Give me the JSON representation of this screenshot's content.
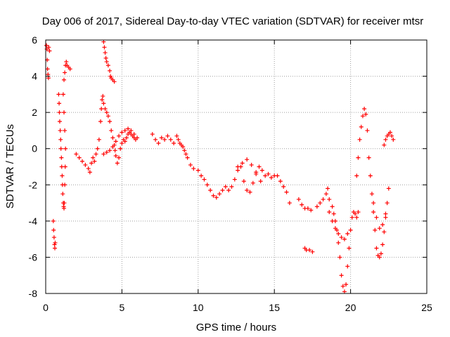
{
  "chart_data": {
    "type": "scatter",
    "title": "Day 006 of 2017, Sidereal Day-to-day VTEC variation (SDTVAR) for receiver mtsr",
    "xlabel": "GPS time / hours",
    "ylabel": "SDTVAR / TECUs",
    "xlim": [
      0,
      25
    ],
    "ylim": [
      -8,
      6
    ],
    "xticks": [
      0,
      5,
      10,
      15,
      20,
      25
    ],
    "yticks": [
      -8,
      -6,
      -4,
      -2,
      0,
      2,
      4,
      6
    ],
    "grid": true,
    "marker": "+",
    "series": [
      {
        "name": "SDTVAR",
        "color": "#ff0000",
        "points": [
          [
            0.05,
            5.7
          ],
          [
            0.08,
            5.5
          ],
          [
            0.1,
            4.9
          ],
          [
            0.12,
            4.4
          ],
          [
            0.15,
            4.1
          ],
          [
            0.18,
            3.9
          ],
          [
            0.2,
            5.6
          ],
          [
            0.25,
            5.4
          ],
          [
            0.5,
            -4.0
          ],
          [
            0.52,
            -4.5
          ],
          [
            0.55,
            -4.9
          ],
          [
            0.58,
            -5.3
          ],
          [
            0.6,
            -5.5
          ],
          [
            0.62,
            -5.2
          ],
          [
            0.85,
            3.0
          ],
          [
            0.88,
            2.5
          ],
          [
            0.9,
            2.0
          ],
          [
            0.92,
            1.5
          ],
          [
            0.95,
            1.0
          ],
          [
            0.98,
            0.5
          ],
          [
            1.0,
            0.0
          ],
          [
            1.03,
            -0.5
          ],
          [
            1.05,
            -1.0
          ],
          [
            1.08,
            -1.5
          ],
          [
            1.1,
            -2.0
          ],
          [
            1.12,
            -2.5
          ],
          [
            1.15,
            -3.0
          ],
          [
            1.18,
            -3.2
          ],
          [
            1.2,
            -3.3
          ],
          [
            1.22,
            -3.0
          ],
          [
            1.25,
            -2.0
          ],
          [
            1.28,
            -1.0
          ],
          [
            1.3,
            0.0
          ],
          [
            1.25,
            1.0
          ],
          [
            1.2,
            2.0
          ],
          [
            1.15,
            3.0
          ],
          [
            1.2,
            3.8
          ],
          [
            1.25,
            4.2
          ],
          [
            1.3,
            4.6
          ],
          [
            1.35,
            4.8
          ],
          [
            1.4,
            4.6
          ],
          [
            1.5,
            4.5
          ],
          [
            1.6,
            4.4
          ],
          [
            2.0,
            -0.3
          ],
          [
            2.2,
            -0.5
          ],
          [
            2.4,
            -0.7
          ],
          [
            2.6,
            -0.9
          ],
          [
            2.8,
            -1.1
          ],
          [
            2.9,
            -1.3
          ],
          [
            3.0,
            -0.8
          ],
          [
            3.1,
            -0.5
          ],
          [
            3.2,
            -0.7
          ],
          [
            3.3,
            -0.3
          ],
          [
            3.4,
            0.0
          ],
          [
            3.5,
            0.5
          ],
          [
            3.6,
            1.5
          ],
          [
            3.65,
            2.2
          ],
          [
            3.7,
            2.7
          ],
          [
            3.75,
            2.9
          ],
          [
            3.8,
            2.5
          ],
          [
            3.9,
            2.2
          ],
          [
            4.0,
            2.0
          ],
          [
            4.1,
            1.8
          ],
          [
            4.2,
            1.5
          ],
          [
            4.3,
            1.0
          ],
          [
            4.4,
            0.6
          ],
          [
            4.5,
            0.2
          ],
          [
            4.55,
            -0.1
          ],
          [
            4.6,
            -0.4
          ],
          [
            4.7,
            -0.8
          ],
          [
            4.8,
            -0.5
          ],
          [
            4.9,
            0.0
          ],
          [
            5.0,
            0.3
          ],
          [
            5.1,
            0.5
          ],
          [
            5.2,
            0.4
          ],
          [
            5.3,
            0.6
          ],
          [
            5.4,
            0.8
          ],
          [
            5.5,
            0.9
          ],
          [
            5.6,
            0.8
          ],
          [
            5.7,
            0.7
          ],
          [
            5.8,
            0.6
          ],
          [
            5.9,
            0.5
          ],
          [
            3.8,
            -0.3
          ],
          [
            4.0,
            -0.2
          ],
          [
            4.2,
            -0.1
          ],
          [
            4.4,
            0.1
          ],
          [
            4.6,
            0.4
          ],
          [
            4.8,
            0.7
          ],
          [
            5.0,
            0.9
          ],
          [
            5.2,
            1.0
          ],
          [
            5.4,
            1.1
          ],
          [
            5.6,
            1.0
          ],
          [
            5.8,
            0.8
          ],
          [
            6.0,
            0.6
          ],
          [
            3.8,
            5.9
          ],
          [
            3.85,
            5.6
          ],
          [
            3.9,
            5.3
          ],
          [
            3.95,
            5.0
          ],
          [
            4.0,
            4.8
          ],
          [
            4.1,
            4.6
          ],
          [
            4.2,
            4.3
          ],
          [
            4.25,
            4.0
          ],
          [
            4.3,
            3.9
          ],
          [
            4.4,
            3.8
          ],
          [
            4.5,
            3.7
          ],
          [
            7.0,
            0.8
          ],
          [
            7.2,
            0.5
          ],
          [
            7.4,
            0.3
          ],
          [
            7.6,
            0.6
          ],
          [
            7.8,
            0.5
          ],
          [
            8.0,
            0.7
          ],
          [
            8.2,
            0.5
          ],
          [
            8.4,
            0.3
          ],
          [
            8.6,
            0.7
          ],
          [
            8.7,
            0.5
          ],
          [
            8.8,
            0.3
          ],
          [
            8.9,
            0.2
          ],
          [
            9.0,
            0.1
          ],
          [
            9.1,
            -0.1
          ],
          [
            9.2,
            -0.3
          ],
          [
            9.3,
            -0.5
          ],
          [
            9.5,
            -0.9
          ],
          [
            9.7,
            -1.1
          ],
          [
            10.0,
            -1.2
          ],
          [
            10.2,
            -1.5
          ],
          [
            10.4,
            -1.7
          ],
          [
            10.6,
            -2.0
          ],
          [
            10.8,
            -2.3
          ],
          [
            11.0,
            -2.6
          ],
          [
            11.2,
            -2.7
          ],
          [
            11.4,
            -2.5
          ],
          [
            11.6,
            -2.3
          ],
          [
            11.8,
            -2.1
          ],
          [
            12.0,
            -2.3
          ],
          [
            12.2,
            -2.1
          ],
          [
            12.4,
            -1.7
          ],
          [
            12.6,
            -1.2
          ],
          [
            12.8,
            -1.0
          ],
          [
            13.0,
            -1.8
          ],
          [
            13.2,
            -2.3
          ],
          [
            13.4,
            -2.4
          ],
          [
            13.6,
            -1.9
          ],
          [
            13.8,
            -1.3
          ],
          [
            14.0,
            -1.0
          ],
          [
            14.2,
            -1.2
          ],
          [
            14.4,
            -1.5
          ],
          [
            14.6,
            -1.4
          ],
          [
            14.8,
            -1.6
          ],
          [
            15.0,
            -1.5
          ],
          [
            15.2,
            -1.5
          ],
          [
            15.4,
            -1.8
          ],
          [
            15.6,
            -2.1
          ],
          [
            15.8,
            -2.4
          ],
          [
            16.0,
            -3.0
          ],
          [
            12.6,
            -1.0
          ],
          [
            12.9,
            -0.8
          ],
          [
            13.2,
            -0.6
          ],
          [
            13.5,
            -0.9
          ],
          [
            13.8,
            -1.4
          ],
          [
            14.1,
            -1.8
          ],
          [
            16.6,
            -2.8
          ],
          [
            16.8,
            -3.1
          ],
          [
            17.0,
            -3.3
          ],
          [
            17.2,
            -3.3
          ],
          [
            17.4,
            -3.4
          ],
          [
            17.0,
            -5.5
          ],
          [
            17.1,
            -5.6
          ],
          [
            17.3,
            -5.6
          ],
          [
            17.5,
            -5.7
          ],
          [
            17.8,
            -3.2
          ],
          [
            18.0,
            -3.0
          ],
          [
            18.2,
            -2.8
          ],
          [
            18.4,
            -2.5
          ],
          [
            18.5,
            -2.2
          ],
          [
            18.6,
            -2.8
          ],
          [
            18.8,
            -3.2
          ],
          [
            18.9,
            -3.6
          ],
          [
            19.0,
            -4.0
          ],
          [
            19.1,
            -4.5
          ],
          [
            19.2,
            -5.2
          ],
          [
            19.3,
            -6.0
          ],
          [
            19.4,
            -7.0
          ],
          [
            19.5,
            -7.6
          ],
          [
            19.6,
            -7.9
          ],
          [
            19.7,
            -7.5
          ],
          [
            19.8,
            -6.5
          ],
          [
            19.9,
            -5.5
          ],
          [
            20.0,
            -4.5
          ],
          [
            20.1,
            -3.8
          ],
          [
            20.2,
            -3.5
          ],
          [
            20.3,
            -3.6
          ],
          [
            20.4,
            -3.8
          ],
          [
            20.5,
            -3.5
          ],
          [
            18.6,
            -3.5
          ],
          [
            18.8,
            -4.0
          ],
          [
            19.0,
            -4.4
          ],
          [
            19.2,
            -4.7
          ],
          [
            19.4,
            -4.9
          ],
          [
            19.6,
            -5.0
          ],
          [
            19.8,
            -4.7
          ],
          [
            20.4,
            -1.5
          ],
          [
            20.5,
            -0.5
          ],
          [
            20.6,
            0.5
          ],
          [
            20.7,
            1.2
          ],
          [
            20.8,
            1.8
          ],
          [
            20.9,
            2.2
          ],
          [
            21.0,
            1.9
          ],
          [
            21.1,
            1.0
          ],
          [
            21.2,
            -0.5
          ],
          [
            21.3,
            -1.5
          ],
          [
            21.4,
            -2.5
          ],
          [
            21.5,
            -3.5
          ],
          [
            21.6,
            -4.5
          ],
          [
            21.7,
            -5.5
          ],
          [
            21.8,
            -5.9
          ],
          [
            21.9,
            -6.0
          ],
          [
            22.0,
            -5.8
          ],
          [
            22.1,
            -5.3
          ],
          [
            22.2,
            -4.6
          ],
          [
            22.3,
            -3.8
          ],
          [
            22.4,
            -3.0
          ],
          [
            22.5,
            -2.2
          ],
          [
            21.5,
            -3.0
          ],
          [
            21.7,
            -3.8
          ],
          [
            21.9,
            -4.4
          ],
          [
            22.1,
            -4.2
          ],
          [
            22.3,
            -3.6
          ],
          [
            22.2,
            0.2
          ],
          [
            22.3,
            0.5
          ],
          [
            22.4,
            0.7
          ],
          [
            22.5,
            0.8
          ],
          [
            22.6,
            0.9
          ],
          [
            22.7,
            0.7
          ],
          [
            22.8,
            0.5
          ]
        ]
      }
    ]
  }
}
